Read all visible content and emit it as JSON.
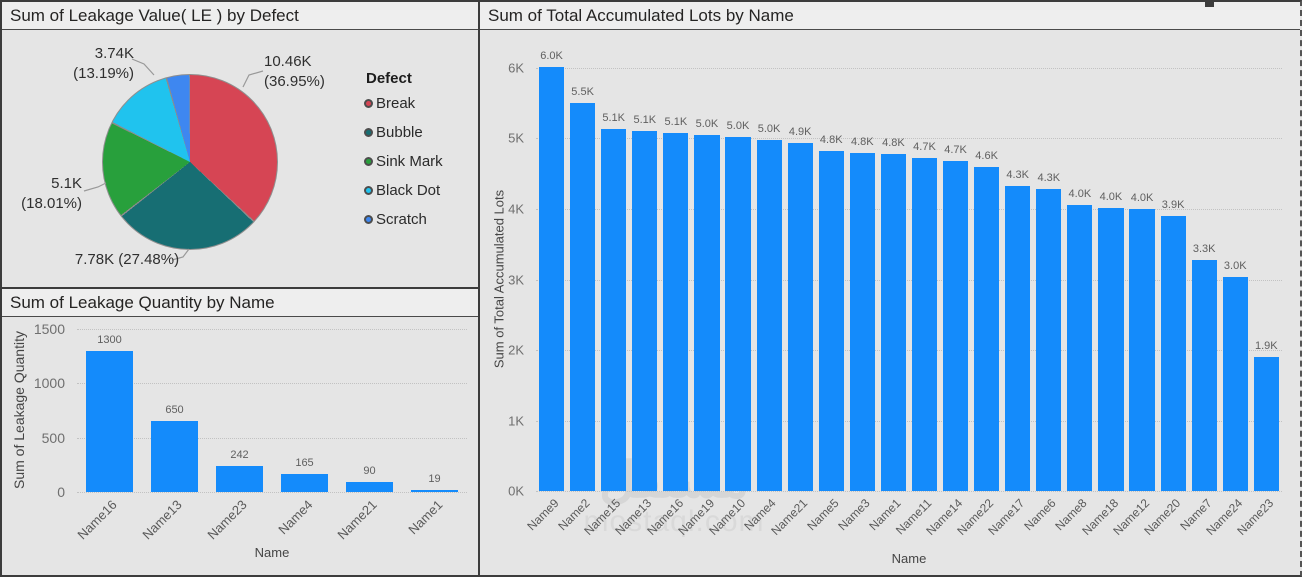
{
  "colors": {
    "bar_blue": "#148bfb",
    "pie_break": "#d64554",
    "pie_bubble": "#176e73",
    "pie_sink_mark": "#28a03c",
    "pie_black_dot": "#20c3ee",
    "pie_scratch": "#3e87f0",
    "panel_bg": "#e5e5e5",
    "slice_separator": "#8c8c8c"
  },
  "watermark": {
    "logo": "مستقل",
    "site": "mostaql.com"
  },
  "pie_panel": {
    "title": "Sum of Leakage Value( LE ) by Defect",
    "legend_title": "Defect",
    "callouts": {
      "break": {
        "line1": "10.46K",
        "line2": "(36.95%)"
      },
      "black_dot": {
        "line1": "3.74K",
        "line2": "(13.19%)"
      },
      "sink_mark": {
        "line1": "5.1K",
        "line2": "(18.01%)"
      },
      "bubble": {
        "line1": "7.78K (27.48%)"
      }
    }
  },
  "chart_data": [
    {
      "type": "pie",
      "title": "Sum of Leakage Value( LE ) by Defect",
      "legend_title": "Defect",
      "legend_position": "right",
      "slices": [
        {
          "label": "Break",
          "value_label": "10.46K",
          "pct": 36.95,
          "color": "#d64554"
        },
        {
          "label": "Bubble",
          "value_label": "7.78K",
          "pct": 27.48,
          "color": "#176e73"
        },
        {
          "label": "Sink Mark",
          "value_label": "5.1K",
          "pct": 18.01,
          "color": "#28a03c"
        },
        {
          "label": "Black Dot",
          "value_label": "3.74K",
          "pct": 13.19,
          "color": "#20c3ee"
        },
        {
          "label": "Scratch",
          "value_label": "",
          "pct": 4.37,
          "color": "#3e87f0"
        }
      ]
    },
    {
      "type": "bar",
      "title": "Sum of Leakage Quantity by Name",
      "categories": [
        "Name16",
        "Name13",
        "Name23",
        "Name4",
        "Name21",
        "Name1"
      ],
      "values": [
        1300,
        650,
        242,
        165,
        90,
        19
      ],
      "value_labels": [
        "1300",
        "650",
        "242",
        "165",
        "90",
        "19"
      ],
      "xlabel": "Name",
      "ylabel": "Sum of Leakage Quantity",
      "yticks": [
        "1500",
        "1000",
        "500",
        "0"
      ],
      "ylim": [
        0,
        1500
      ],
      "grid": "dotted horizontal"
    },
    {
      "type": "bar",
      "title": "Sum of Total Accumulated Lots by Name",
      "categories": [
        "Name9",
        "Name2",
        "Name15",
        "Name13",
        "Name16",
        "Name19",
        "Name10",
        "Name4",
        "Name21",
        "Name5",
        "Name3",
        "Name1",
        "Name11",
        "Name14",
        "Name22",
        "Name17",
        "Name6",
        "Name8",
        "Name18",
        "Name12",
        "Name20",
        "Name7",
        "Name24",
        "Name23"
      ],
      "values": [
        6010,
        5500,
        5140,
        5100,
        5080,
        5050,
        5020,
        4980,
        4930,
        4820,
        4800,
        4780,
        4720,
        4680,
        4600,
        4320,
        4280,
        4050,
        4020,
        4000,
        3900,
        3280,
        3040,
        1900
      ],
      "value_labels": [
        "6.0K",
        "5.5K",
        "5.1K",
        "5.1K",
        "5.1K",
        "5.0K",
        "5.0K",
        "5.0K",
        "4.9K",
        "4.8K",
        "4.8K",
        "4.8K",
        "4.7K",
        "4.7K",
        "4.6K",
        "4.3K",
        "4.3K",
        "4.0K",
        "4.0K",
        "4.0K",
        "3.9K",
        "3.3K",
        "3.0K",
        "1.9K"
      ],
      "xlabel": "Name",
      "ylabel": "Sum of Total Accumulated Lots",
      "yticks": [
        "6K",
        "5K",
        "4K",
        "3K",
        "2K",
        "1K",
        "0K"
      ],
      "ylim": [
        0,
        6000
      ],
      "grid": "dotted horizontal"
    }
  ]
}
